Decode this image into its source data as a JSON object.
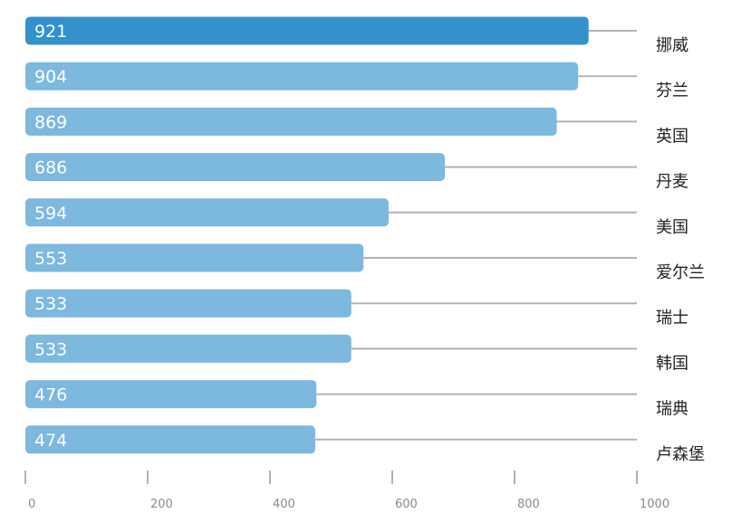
{
  "chart_data": {
    "type": "bar",
    "orientation": "horizontal",
    "title": "",
    "xlabel": "",
    "ylabel": "",
    "categories": [
      "挪威",
      "芬兰",
      "英国",
      "丹麦",
      "美国",
      "爱尔兰",
      "瑞士",
      "韩国",
      "瑞典",
      "卢森堡"
    ],
    "values": [
      921,
      904,
      869,
      686,
      594,
      553,
      533,
      533,
      476,
      474
    ],
    "value_labels": [
      "921",
      "904",
      "869",
      "686",
      "594",
      "553",
      "533",
      "533",
      "476",
      "474"
    ],
    "xlim": [
      0,
      1000
    ],
    "x_ticks": [
      0,
      200,
      400,
      600,
      800,
      1000
    ],
    "x_tick_labels": [
      "0",
      "200",
      "400",
      "600",
      "800",
      "1000"
    ],
    "grid": false,
    "legend": "none",
    "colors": {
      "highlight": "#3391cc",
      "bar": "#7db8df",
      "guide_line": "#b3b3b3",
      "axis_tick": "#999999",
      "value_text": "#ffffff",
      "category_text": "#222222"
    }
  }
}
